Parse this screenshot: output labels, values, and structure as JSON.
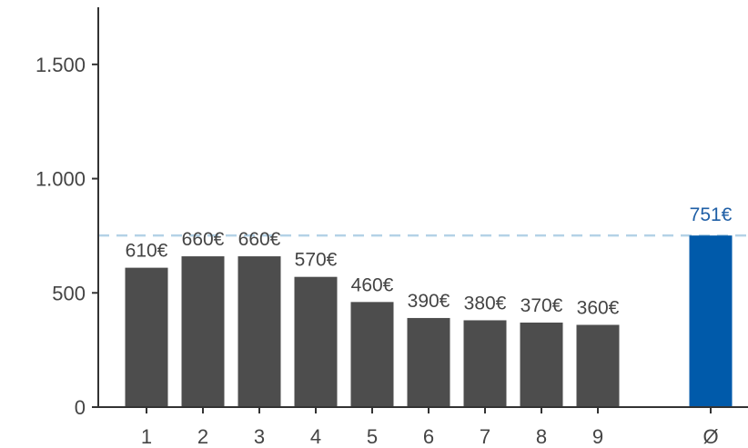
{
  "chart_data": {
    "type": "bar",
    "categories": [
      "1",
      "2",
      "3",
      "4",
      "5",
      "6",
      "7",
      "8",
      "9",
      "Ø"
    ],
    "values": [
      610,
      660,
      660,
      570,
      460,
      390,
      380,
      370,
      360,
      751
    ],
    "data_labels": [
      "610€",
      "660€",
      "660€",
      "570€",
      "460€",
      "390€",
      "380€",
      "370€",
      "360€",
      "751€"
    ],
    "highlight_category": "Ø",
    "reference_line": {
      "value": 751,
      "style": "dashed"
    },
    "ylim": [
      0,
      1750
    ],
    "yticks": [
      0,
      500,
      1000,
      1500
    ],
    "ytick_labels": [
      "0",
      "500",
      "1.000",
      "1.500"
    ],
    "title": "",
    "xlabel": "",
    "ylabel": "",
    "grid": false,
    "colors": {
      "bar": "#4d4d4d",
      "highlight_bar": "#005aaa",
      "highlight_label": "#1f5fa6",
      "reference_line": "#b4d2e6",
      "axis": "#333333"
    }
  }
}
